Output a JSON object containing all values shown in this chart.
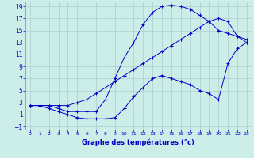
{
  "xlabel": "Graphe des températures (°c)",
  "bg_color": "#cceee8",
  "grid_color": "#aacccc",
  "line_color": "#0000cc",
  "xlim": [
    -0.5,
    23.5
  ],
  "ylim": [
    -1.5,
    19.8
  ],
  "xticks": [
    0,
    1,
    2,
    3,
    4,
    5,
    6,
    7,
    8,
    9,
    10,
    11,
    12,
    13,
    14,
    15,
    16,
    17,
    18,
    19,
    20,
    21,
    22,
    23
  ],
  "yticks": [
    -1,
    1,
    3,
    5,
    7,
    9,
    11,
    13,
    15,
    17,
    19
  ],
  "line1_x": [
    0,
    1,
    2,
    3,
    4,
    5,
    6,
    7,
    8,
    9,
    10,
    11,
    12,
    13,
    14,
    15,
    16,
    17,
    18,
    19,
    20,
    21,
    22,
    23
  ],
  "line1_y": [
    2.5,
    2.5,
    2.5,
    2.0,
    1.5,
    1.5,
    1.5,
    1.5,
    3.5,
    7.0,
    10.5,
    13.0,
    16.0,
    18.0,
    19.0,
    19.2,
    19.0,
    18.5,
    17.5,
    16.5,
    15.0,
    14.5,
    14.0,
    13.5
  ],
  "line2_x": [
    0,
    1,
    2,
    3,
    4,
    5,
    6,
    7,
    8,
    9,
    10,
    11,
    12,
    13,
    14,
    15,
    16,
    17,
    18,
    19,
    20,
    21,
    22,
    23
  ],
  "line2_y": [
    2.5,
    2.5,
    2.0,
    1.5,
    1.0,
    0.5,
    0.3,
    0.3,
    0.3,
    0.5,
    2.0,
    4.0,
    5.5,
    7.0,
    7.5,
    7.0,
    6.5,
    6.0,
    5.0,
    4.5,
    3.5,
    9.5,
    12.0,
    13.0
  ],
  "line3_x": [
    0,
    1,
    2,
    3,
    4,
    5,
    6,
    7,
    8,
    9,
    10,
    11,
    12,
    13,
    14,
    15,
    16,
    17,
    18,
    19,
    20,
    21,
    22,
    23
  ],
  "line3_y": [
    2.5,
    2.5,
    2.5,
    2.5,
    2.5,
    3.0,
    3.5,
    4.5,
    5.5,
    6.5,
    7.5,
    8.5,
    9.5,
    10.5,
    11.5,
    12.5,
    13.5,
    14.5,
    15.5,
    16.5,
    17.0,
    16.5,
    14.0,
    13.0
  ]
}
